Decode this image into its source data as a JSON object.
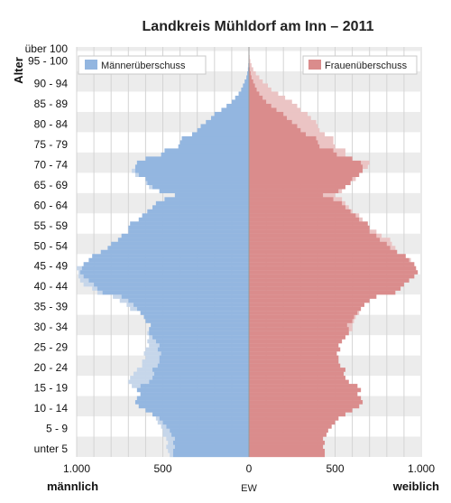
{
  "chart_data": {
    "type": "bar",
    "orientation": "horizontal",
    "title": "Landkreis Mühldorf am Inn – 2011",
    "ylabel": "Alter",
    "xlabel_left": "männlich",
    "xlabel_center": "EW",
    "xlabel_right": "weiblich",
    "x_tick_labels": [
      "1.000",
      "500",
      "0",
      "500",
      "1.000"
    ],
    "xlim": [
      -1000,
      1000
    ],
    "age_tick_labels": [
      "über 100",
      "95 - 100",
      "90 - 94",
      "85 - 89",
      "80 - 84",
      "75 - 79",
      "70 - 74",
      "65 - 69",
      "60 - 64",
      "55 - 59",
      "50 - 54",
      "45 - 49",
      "40 - 44",
      "35 - 39",
      "30 - 34",
      "25 - 29",
      "20 - 24",
      "15 - 19",
      "10 - 14",
      "5 - 9",
      "unter 5"
    ],
    "legend": [
      "Männerüberschuss",
      "Frauenüberschuss"
    ],
    "colors": {
      "male": "#93b6e0",
      "female": "#da8c8c",
      "male_excess": "#c6d6ea",
      "female_excess": "#ebc4c4",
      "band": "#ececec",
      "grid": "#d4d4d4"
    },
    "ages": [
      0,
      1,
      2,
      3,
      4,
      5,
      6,
      7,
      8,
      9,
      10,
      11,
      12,
      13,
      14,
      15,
      16,
      17,
      18,
      19,
      20,
      21,
      22,
      23,
      24,
      25,
      26,
      27,
      28,
      29,
      30,
      31,
      32,
      33,
      34,
      35,
      36,
      37,
      38,
      39,
      40,
      41,
      42,
      43,
      44,
      45,
      46,
      47,
      48,
      49,
      50,
      51,
      52,
      53,
      54,
      55,
      56,
      57,
      58,
      59,
      60,
      61,
      62,
      63,
      64,
      65,
      66,
      67,
      68,
      69,
      70,
      71,
      72,
      73,
      74,
      75,
      76,
      77,
      78,
      79,
      80,
      81,
      82,
      83,
      84,
      85,
      86,
      87,
      88,
      89,
      90,
      91,
      92,
      93,
      94,
      95,
      96,
      97,
      98,
      99,
      100
    ],
    "male": [
      460,
      470,
      480,
      470,
      480,
      500,
      500,
      510,
      530,
      540,
      560,
      600,
      640,
      660,
      650,
      630,
      650,
      680,
      700,
      690,
      670,
      650,
      620,
      620,
      600,
      610,
      600,
      580,
      590,
      580,
      590,
      580,
      570,
      600,
      610,
      630,
      690,
      710,
      750,
      790,
      880,
      910,
      960,
      980,
      990,
      990,
      1000,
      960,
      930,
      910,
      860,
      820,
      800,
      760,
      740,
      700,
      700,
      690,
      640,
      620,
      590,
      560,
      540,
      490,
      430,
      520,
      580,
      600,
      600,
      660,
      680,
      660,
      650,
      600,
      510,
      490,
      410,
      400,
      390,
      330,
      300,
      280,
      250,
      220,
      200,
      160,
      130,
      100,
      80,
      60,
      45,
      35,
      25,
      15,
      10,
      6,
      4,
      2,
      1,
      1,
      1
    ],
    "female": [
      440,
      440,
      430,
      440,
      430,
      450,
      460,
      480,
      500,
      520,
      560,
      600,
      640,
      660,
      650,
      630,
      650,
      630,
      580,
      560,
      550,
      560,
      530,
      520,
      520,
      510,
      530,
      520,
      540,
      560,
      580,
      600,
      600,
      610,
      620,
      640,
      650,
      670,
      700,
      740,
      850,
      880,
      900,
      930,
      960,
      980,
      970,
      960,
      940,
      910,
      860,
      850,
      830,
      820,
      770,
      740,
      700,
      690,
      660,
      640,
      600,
      580,
      560,
      540,
      500,
      540,
      560,
      590,
      620,
      640,
      660,
      690,
      700,
      600,
      560,
      560,
      500,
      490,
      490,
      440,
      410,
      400,
      390,
      360,
      340,
      300,
      280,
      250,
      210,
      170,
      130,
      110,
      80,
      60,
      40,
      25,
      15,
      8,
      4,
      2,
      2
    ]
  }
}
